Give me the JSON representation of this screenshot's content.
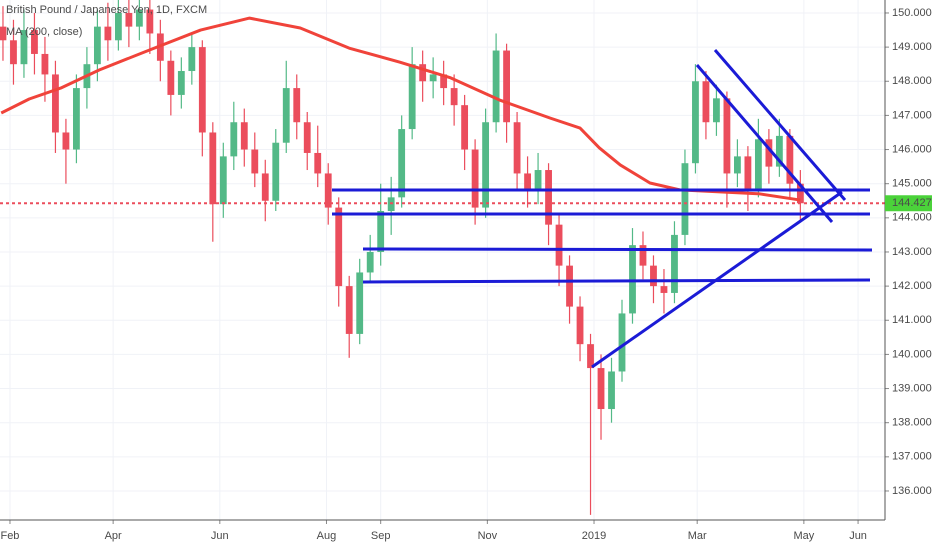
{
  "chart_data": {
    "type": "candlestick",
    "title": "British Pound / Japanese Yen, 1D, FXCM",
    "x": [
      -4,
      2,
      8,
      14,
      20,
      26,
      32,
      38,
      44,
      50,
      56,
      62,
      68,
      74,
      80,
      86,
      92,
      98,
      104,
      110,
      116,
      122,
      128,
      134,
      140,
      146,
      152,
      158,
      164,
      170,
      176,
      182,
      188,
      194,
      200,
      206,
      212,
      218,
      224,
      230,
      236,
      242,
      248,
      254,
      260,
      266,
      272,
      278,
      284,
      290,
      296,
      302,
      308,
      314,
      320,
      326,
      332,
      338,
      344,
      350,
      356,
      362,
      368,
      374,
      380,
      386,
      392,
      398,
      404,
      410,
      416,
      422,
      428,
      434,
      440,
      446,
      452
    ],
    "open": [
      149.6,
      149.2,
      148.5,
      149.5,
      148.8,
      148.2,
      146.5,
      146.0,
      147.8,
      148.5,
      149.6,
      149.2,
      150.0,
      149.6,
      150.1,
      149.4,
      148.6,
      147.6,
      148.3,
      149.0,
      146.5,
      144.4,
      145.8,
      146.8,
      146.0,
      145.3,
      144.5,
      146.2,
      147.8,
      146.8,
      145.9,
      145.3,
      144.3,
      142.0,
      140.6,
      142.4,
      143.0,
      144.2,
      144.6,
      146.6,
      148.5,
      148.0,
      148.2,
      147.8,
      147.3,
      146.0,
      144.3,
      146.8,
      148.9,
      146.8,
      145.3,
      144.8,
      145.4,
      143.8,
      142.6,
      141.4,
      140.3,
      139.6,
      138.4,
      139.5,
      141.2,
      143.2,
      142.6,
      142.0,
      141.8,
      143.5,
      145.6,
      148.0,
      146.8,
      147.5,
      145.3,
      145.8,
      144.8,
      146.3,
      145.5,
      146.4,
      145.0
    ],
    "high": [
      150.2,
      149.8,
      150.1,
      150.0,
      149.3,
      148.6,
      146.9,
      148.2,
      149.0,
      150.1,
      150.3,
      150.4,
      150.4,
      150.4,
      150.4,
      149.8,
      148.9,
      148.7,
      149.4,
      149.2,
      146.8,
      146.2,
      147.4,
      147.2,
      146.5,
      145.7,
      146.6,
      148.6,
      148.2,
      147.1,
      146.7,
      145.6,
      144.6,
      142.3,
      142.8,
      143.5,
      145.0,
      145.2,
      147.0,
      149.0,
      148.9,
      148.7,
      148.6,
      148.2,
      147.6,
      146.3,
      147.2,
      149.4,
      149.1,
      147.1,
      145.8,
      145.9,
      145.6,
      144.1,
      142.9,
      141.7,
      140.6,
      140.0,
      139.9,
      141.6,
      143.7,
      143.6,
      142.9,
      142.5,
      143.9,
      146.0,
      148.5,
      148.3,
      147.9,
      147.7,
      146.3,
      146.1,
      146.9,
      146.6,
      146.9,
      146.6,
      145.4
    ],
    "low": [
      148.6,
      147.9,
      148.1,
      148.2,
      147.4,
      145.9,
      145.0,
      145.6,
      147.2,
      148.0,
      148.6,
      148.9,
      149.0,
      149.2,
      148.8,
      148.0,
      147.0,
      147.2,
      147.9,
      145.8,
      143.3,
      144.0,
      145.4,
      145.5,
      144.9,
      143.9,
      144.2,
      145.9,
      146.3,
      145.4,
      144.9,
      143.8,
      141.4,
      139.9,
      140.3,
      142.1,
      142.6,
      143.5,
      144.3,
      146.3,
      147.4,
      147.5,
      147.3,
      146.7,
      145.4,
      143.8,
      144.0,
      146.5,
      146.2,
      144.8,
      144.3,
      144.4,
      143.2,
      142.0,
      140.9,
      139.8,
      135.3,
      137.5,
      138.0,
      139.2,
      140.9,
      142.2,
      141.5,
      141.2,
      141.5,
      143.2,
      145.3,
      146.3,
      146.4,
      144.3,
      144.9,
      144.2,
      144.6,
      145.0,
      145.2,
      144.6,
      143.9
    ],
    "close": [
      149.2,
      148.5,
      149.5,
      148.8,
      148.2,
      146.5,
      146.0,
      147.8,
      148.5,
      149.6,
      149.2,
      150.0,
      149.6,
      150.1,
      149.4,
      148.6,
      147.6,
      148.3,
      149.0,
      146.5,
      144.4,
      145.8,
      146.8,
      146.0,
      145.3,
      144.5,
      146.2,
      147.8,
      146.8,
      145.9,
      145.3,
      144.3,
      142.0,
      140.6,
      142.4,
      143.0,
      144.2,
      144.6,
      146.6,
      148.5,
      148.0,
      148.2,
      147.8,
      147.3,
      146.0,
      144.3,
      146.8,
      148.9,
      146.8,
      145.3,
      144.8,
      145.4,
      143.8,
      142.6,
      141.4,
      140.3,
      139.6,
      138.4,
      139.5,
      141.2,
      143.2,
      142.6,
      142.0,
      141.8,
      143.5,
      145.6,
      148.0,
      146.8,
      147.5,
      145.3,
      145.8,
      144.8,
      146.3,
      145.5,
      146.4,
      145.0,
      144.427
    ],
    "up_color": "#53b987",
    "down_color": "#eb4d5c",
    "ma": {
      "name": "MA (200, close)",
      "color": "#f0433a",
      "x": [
        -5,
        11,
        29,
        51,
        80,
        109,
        137,
        166,
        194,
        223,
        252,
        280,
        309,
        326,
        337,
        349,
        366,
        383,
        406,
        429,
        452
      ],
      "values": [
        147.07,
        147.48,
        147.8,
        148.33,
        148.92,
        149.5,
        149.85,
        149.56,
        148.97,
        148.56,
        148.1,
        147.45,
        146.92,
        146.63,
        146.05,
        145.55,
        145.02,
        144.82,
        144.76,
        144.7,
        144.52
      ]
    },
    "last_price": {
      "value": 144.427,
      "label": "144.427",
      "color": "#4bd23a"
    },
    "xlim": [
      -5.7,
      500.4
    ],
    "xticks": [
      {
        "value": 0,
        "label": "Feb"
      },
      {
        "value": 59,
        "label": "Apr"
      },
      {
        "value": 120,
        "label": "Jun"
      },
      {
        "value": 181,
        "label": "Aug"
      },
      {
        "value": 212,
        "label": "Sep"
      },
      {
        "value": 273,
        "label": "Nov"
      },
      {
        "value": 334,
        "label": "2019"
      },
      {
        "value": 393,
        "label": "Mar"
      },
      {
        "value": 454,
        "label": "May"
      },
      {
        "value": 485,
        "label": "Jun"
      }
    ],
    "ylim": [
      135.15,
      150.38
    ],
    "yticks": [
      {
        "value": 136,
        "label": "136.000"
      },
      {
        "value": 137,
        "label": "137.000"
      },
      {
        "value": 138,
        "label": "138.000"
      },
      {
        "value": 139,
        "label": "139.000"
      },
      {
        "value": 140,
        "label": "140.000"
      },
      {
        "value": 141,
        "label": "141.000"
      },
      {
        "value": 142,
        "label": "142.000"
      },
      {
        "value": 143,
        "label": "143.000"
      },
      {
        "value": 144,
        "label": "144.000"
      },
      {
        "value": 145,
        "label": "145.000"
      },
      {
        "value": 146,
        "label": "146.000"
      },
      {
        "value": 147,
        "label": "147.000"
      },
      {
        "value": 148,
        "label": "148.000"
      },
      {
        "value": 149,
        "label": "149.000"
      },
      {
        "value": 150,
        "label": "150.000"
      }
    ],
    "grid": true
  }
}
